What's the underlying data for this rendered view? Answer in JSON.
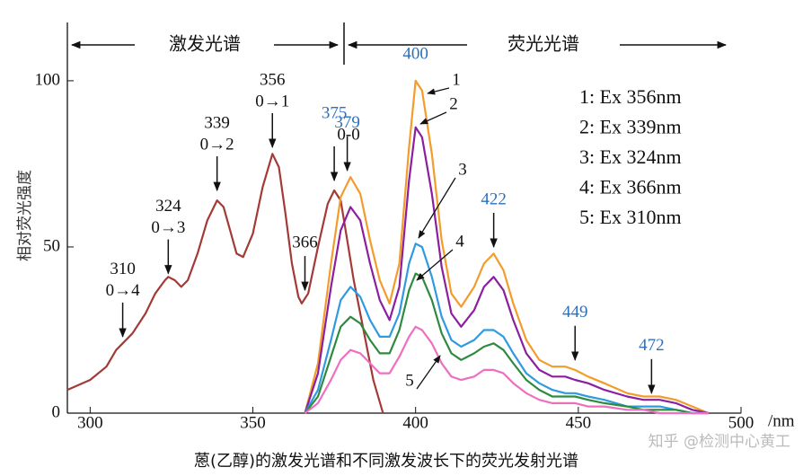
{
  "chart_data": {
    "type": "line",
    "regions": [
      "激发光谱",
      "荧光光谱"
    ],
    "ylabel": "相对荧光强度",
    "xunit": "/nm",
    "caption": "蒽(乙醇)的激发光谱和不同激发波长下的荧光发射光谱",
    "watermark": "知乎 @检测中心黄工",
    "xlim": [
      293,
      500
    ],
    "ylim": [
      0,
      117
    ],
    "xticks": [
      300,
      350,
      400,
      450,
      500
    ],
    "yticks": [
      0,
      50,
      100
    ],
    "series": [
      {
        "color": "#a33a35",
        "x": [
          293,
          300,
          305,
          308,
          310,
          313,
          317,
          320,
          323,
          324,
          326,
          328,
          330,
          333,
          336,
          339,
          341,
          343,
          345,
          347,
          350,
          353,
          356,
          358,
          360,
          362,
          364,
          365,
          367,
          370,
          373,
          375,
          377,
          379,
          381,
          384,
          387,
          390
        ],
        "values": [
          7,
          10,
          14,
          19,
          21,
          24,
          30,
          36,
          40,
          41,
          40,
          38,
          40,
          48,
          58,
          64,
          62,
          55,
          48,
          47,
          54,
          68,
          78,
          74,
          60,
          45,
          35,
          33,
          36,
          50,
          63,
          67,
          64,
          52,
          40,
          25,
          10,
          0
        ]
      },
      {
        "name": "1: Ex 356nm",
        "curve_label": "1",
        "color": "#f39c2b",
        "x": [
          366,
          370,
          374,
          377,
          380,
          383,
          386,
          389,
          392,
          395,
          398,
          400,
          402,
          405,
          408,
          411,
          414,
          418,
          421,
          424,
          427,
          430,
          434,
          438,
          442,
          446,
          449,
          453,
          458,
          465,
          470,
          475,
          480,
          485,
          490
        ],
        "values": [
          0,
          15,
          45,
          65,
          71,
          66,
          52,
          40,
          33,
          45,
          80,
          100,
          97,
          78,
          52,
          36,
          32,
          38,
          45,
          48,
          43,
          33,
          22,
          16,
          14,
          14,
          13,
          11,
          9,
          6,
          5,
          5,
          4,
          2,
          0
        ]
      },
      {
        "name": "2: Ex 339nm",
        "curve_label": "2",
        "color": "#8b1fa0",
        "x": [
          366,
          370,
          374,
          377,
          380,
          383,
          386,
          389,
          392,
          395,
          398,
          400,
          402,
          405,
          408,
          411,
          414,
          418,
          421,
          424,
          427,
          430,
          434,
          438,
          442,
          446,
          449,
          453,
          458,
          465,
          470,
          475,
          480,
          485,
          490
        ],
        "values": [
          0,
          12,
          38,
          55,
          62,
          58,
          45,
          34,
          28,
          38,
          70,
          86,
          83,
          66,
          44,
          30,
          26,
          31,
          38,
          41,
          37,
          28,
          18,
          13,
          11,
          11,
          10,
          9,
          7,
          5,
          4,
          4,
          3,
          1,
          0
        ]
      },
      {
        "name": "3: Ex 324nm",
        "curve_label": "3",
        "color": "#2f9ae0",
        "x": [
          366,
          370,
          374,
          377,
          380,
          383,
          386,
          389,
          392,
          395,
          398,
          400,
          402,
          405,
          408,
          411,
          414,
          418,
          421,
          424,
          427,
          430,
          434,
          438,
          442,
          446,
          449,
          453,
          458,
          465,
          470,
          475,
          480,
          485,
          490
        ],
        "values": [
          0,
          7,
          22,
          34,
          38,
          35,
          28,
          23,
          23,
          30,
          45,
          51,
          50,
          41,
          29,
          22,
          20,
          22,
          25,
          25,
          23,
          18,
          12,
          9,
          7,
          6,
          6,
          5,
          4,
          2,
          2,
          2,
          1,
          0,
          0
        ]
      },
      {
        "name": "4: Ex 366nm",
        "curve_label": "4",
        "color": "#2e8b3e",
        "x": [
          366,
          370,
          374,
          377,
          380,
          383,
          386,
          389,
          392,
          395,
          398,
          400,
          402,
          405,
          408,
          411,
          414,
          418,
          421,
          424,
          427,
          430,
          434,
          438,
          442,
          446,
          449,
          453,
          458,
          465,
          470,
          475,
          480,
          485,
          490
        ],
        "values": [
          0,
          5,
          17,
          26,
          29,
          27,
          22,
          18,
          18,
          25,
          37,
          42,
          41,
          34,
          24,
          18,
          16,
          18,
          20,
          21,
          19,
          15,
          10,
          7,
          5,
          5,
          5,
          4,
          3,
          2,
          1,
          1,
          1,
          0,
          0
        ]
      },
      {
        "name": "5: Ex 310nm",
        "curve_label": "5",
        "color": "#ee6fc0",
        "x": [
          366,
          370,
          374,
          377,
          380,
          383,
          386,
          389,
          392,
          395,
          398,
          400,
          402,
          405,
          408,
          411,
          414,
          418,
          421,
          424,
          427,
          430,
          434,
          438,
          442,
          446,
          449,
          453,
          458,
          465,
          470,
          475,
          480,
          485,
          490
        ],
        "values": [
          0,
          3,
          10,
          16,
          19,
          18,
          15,
          12,
          12,
          17,
          23,
          26,
          25,
          21,
          15,
          11,
          10,
          11,
          13,
          13,
          12,
          9,
          6,
          4,
          3,
          3,
          3,
          2,
          2,
          1,
          1,
          0,
          0,
          0,
          0
        ]
      }
    ],
    "annotations": [
      {
        "label": "310",
        "sub": "0→4",
        "x": 310,
        "y": 23,
        "color": "#111"
      },
      {
        "label": "324",
        "sub": "0→3",
        "x": 324,
        "y": 42,
        "color": "#111"
      },
      {
        "label": "339",
        "sub": "0→2",
        "x": 339,
        "y": 67,
        "color": "#111"
      },
      {
        "label": "356",
        "sub": "0→1",
        "x": 356,
        "y": 80,
        "color": "#111"
      },
      {
        "label": "366",
        "x": 366,
        "y": 37,
        "color": "#111"
      },
      {
        "label": "375",
        "sub": "0-0",
        "x": 375,
        "y": 70,
        "color": "#2c6fbf"
      },
      {
        "label": "379",
        "x": 379,
        "y": 73,
        "color": "#2c6fbf"
      },
      {
        "label": "400",
        "x": 400,
        "y": 104,
        "color": "#2c6fbf"
      },
      {
        "label": "422",
        "x": 424,
        "y": 50,
        "color": "#2c6fbf"
      },
      {
        "label": "449",
        "x": 449,
        "y": 16,
        "color": "#2c6fbf"
      },
      {
        "label": "472",
        "x": 472.5,
        "y": 6,
        "color": "#2c6fbf"
      }
    ]
  }
}
